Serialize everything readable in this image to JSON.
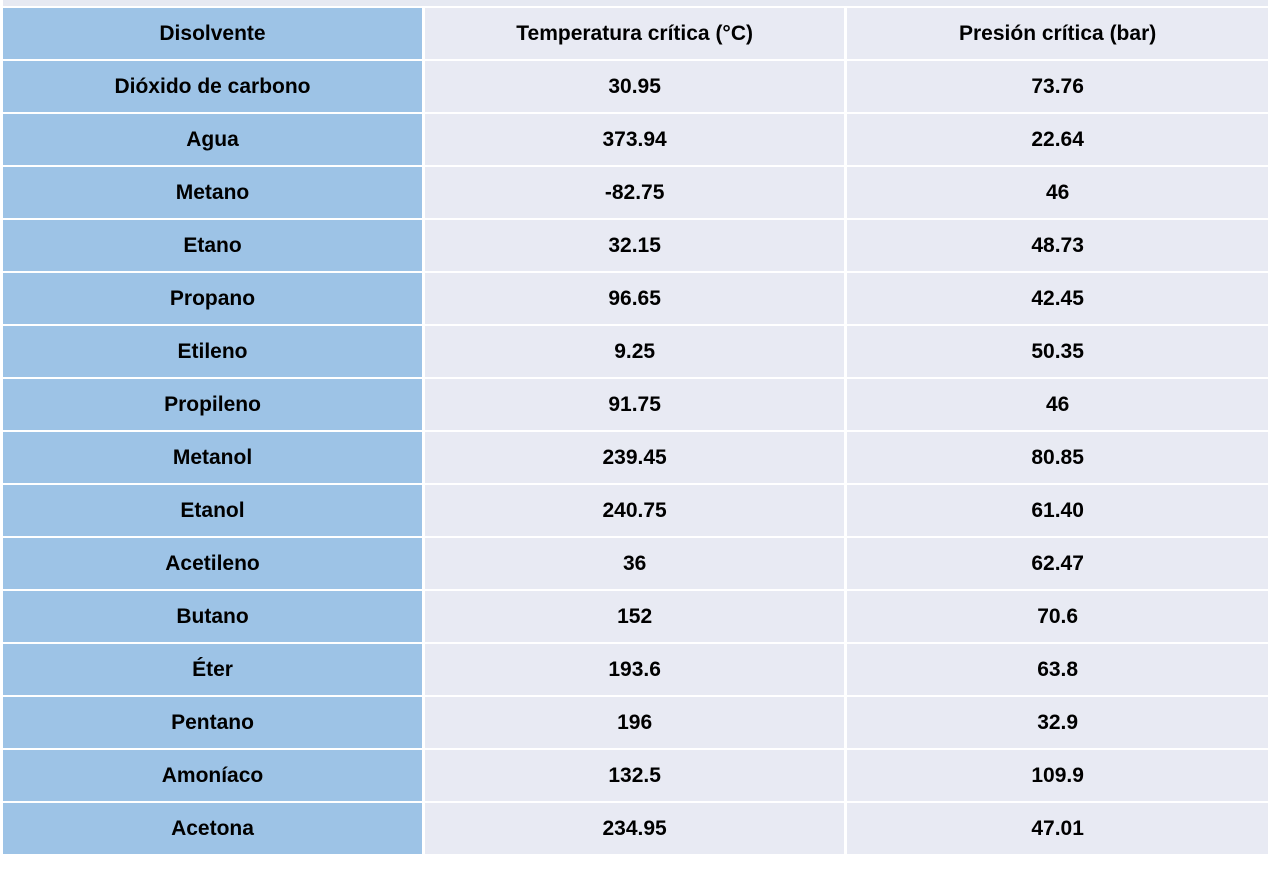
{
  "table": {
    "headers": [
      "Disolvente",
      "Temperatura crítica (°C)",
      "Presión crítica (bar)"
    ],
    "rows": [
      [
        "Dióxido de carbono",
        "30.95",
        "73.76"
      ],
      [
        "Agua",
        "373.94",
        "22.64"
      ],
      [
        "Metano",
        "-82.75",
        "46"
      ],
      [
        "Etano",
        "32.15",
        "48.73"
      ],
      [
        "Propano",
        "96.65",
        "42.45"
      ],
      [
        "Etileno",
        "9.25",
        "50.35"
      ],
      [
        "Propileno",
        "91.75",
        "46"
      ],
      [
        "Metanol",
        "239.45",
        "80.85"
      ],
      [
        "Etanol",
        "240.75",
        "61.40"
      ],
      [
        "Acetileno",
        "36",
        "62.47"
      ],
      [
        "Butano",
        "152",
        "70.6"
      ],
      [
        "Éter",
        "193.6",
        "63.8"
      ],
      [
        "Pentano",
        "196",
        "32.9"
      ],
      [
        "Amoníaco",
        "132.5",
        "109.9"
      ],
      [
        "Acetona",
        "234.95",
        "47.01"
      ]
    ]
  },
  "colors": {
    "first_column": "#9dc3e6",
    "other_columns": "#e8eaf3",
    "text": "#000000"
  }
}
